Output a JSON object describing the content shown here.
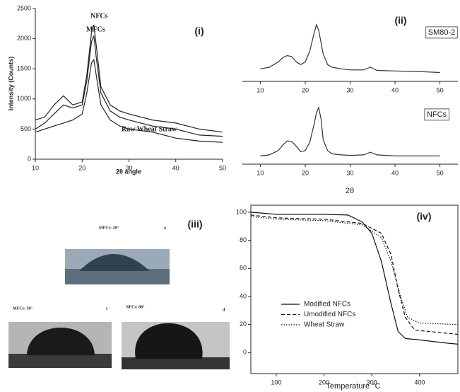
{
  "chart_data": [
    {
      "type": "line",
      "panel_label": "(i)",
      "ylabel": "Intensity (Counts)",
      "xlabel": "2θ angle",
      "xlim": [
        10,
        50
      ],
      "xticks": [
        10,
        20,
        30,
        40,
        50
      ],
      "ylim": [
        0,
        2500
      ],
      "yticks": [
        0,
        500,
        1000,
        1500,
        2000,
        2500
      ],
      "annotations": [
        "NFCs",
        "MFCs",
        "Raw Wheat Straw"
      ],
      "x": [
        10,
        12,
        14,
        16,
        18,
        20,
        21,
        22,
        22.5,
        23,
        24,
        26,
        28,
        30,
        35,
        40,
        45,
        50
      ],
      "series": [
        {
          "color": "#222222",
          "values": [
            650,
            700,
            900,
            1050,
            900,
            950,
            1400,
            2100,
            2230,
            1900,
            1200,
            900,
            800,
            750,
            650,
            600,
            500,
            450
          ]
        },
        {
          "color": "#222222",
          "values": [
            500,
            600,
            750,
            900,
            850,
            900,
            1300,
            1950,
            2050,
            1700,
            1100,
            800,
            700,
            650,
            550,
            500,
            400,
            380
          ]
        },
        {
          "color": "#222222",
          "values": [
            450,
            500,
            550,
            600,
            650,
            750,
            1100,
            1600,
            1650,
            1400,
            900,
            650,
            550,
            500,
            450,
            350,
            300,
            280
          ]
        }
      ]
    },
    {
      "type": "line",
      "panel_label": "(ii)",
      "label": "SM80-2",
      "xlim": [
        6,
        54
      ],
      "xticks": [
        10,
        20,
        30,
        40,
        50
      ],
      "ylim": [
        0,
        1
      ],
      "x": [
        10,
        12,
        14,
        15,
        16,
        17,
        18,
        19,
        20,
        21,
        22,
        22.5,
        23,
        24,
        25,
        26,
        28,
        30,
        33,
        34.5,
        36,
        40,
        45,
        50
      ],
      "values": [
        0.17,
        0.2,
        0.3,
        0.38,
        0.42,
        0.4,
        0.3,
        0.25,
        0.3,
        0.5,
        0.85,
        1.0,
        0.9,
        0.45,
        0.25,
        0.2,
        0.17,
        0.15,
        0.15,
        0.2,
        0.14,
        0.13,
        0.12,
        0.1
      ],
      "color": "#333333"
    },
    {
      "type": "line",
      "label": "NFCs",
      "xlabel": "2θ",
      "xlim": [
        6,
        54
      ],
      "xticks": [
        10,
        20,
        30,
        40,
        50
      ],
      "ylim": [
        0,
        1
      ],
      "x": [
        10,
        12,
        14,
        15,
        16,
        17,
        18,
        19,
        20,
        21,
        22,
        22.5,
        23,
        23.5,
        24,
        25,
        26,
        28,
        30,
        33,
        34.5,
        36,
        40,
        45,
        50
      ],
      "values": [
        0.1,
        0.12,
        0.2,
        0.3,
        0.38,
        0.37,
        0.28,
        0.18,
        0.2,
        0.35,
        0.7,
        0.9,
        1.0,
        0.8,
        0.4,
        0.2,
        0.14,
        0.12,
        0.11,
        0.12,
        0.17,
        0.12,
        0.1,
        0.1,
        0.1
      ],
      "color": "#333333"
    },
    {
      "type": "line",
      "panel_label": "(iv)",
      "xlabel": "Temperature °C",
      "xlim": [
        47,
        480
      ],
      "xticks": [
        100,
        200,
        300,
        400
      ],
      "ylim": [
        -15,
        105
      ],
      "yticks": [
        0,
        20,
        40,
        60,
        80,
        100
      ],
      "series": [
        {
          "name": "Modified NFCs",
          "color": "#111111",
          "style": "solid",
          "x": [
            47,
            100,
            200,
            250,
            280,
            300,
            320,
            340,
            355,
            370,
            400,
            450,
            480
          ],
          "values": [
            100,
            98.5,
            98.5,
            98,
            93,
            85,
            65,
            35,
            15,
            10,
            9,
            7,
            6
          ]
        },
        {
          "name": "Umodified NFCs",
          "color": "#111111",
          "style": "dashed",
          "x": [
            47,
            100,
            200,
            280,
            320,
            340,
            355,
            370,
            390,
            480
          ],
          "values": [
            98,
            96,
            95,
            92,
            85,
            70,
            45,
            25,
            16,
            13
          ]
        },
        {
          "name": "Wheat Straw",
          "color": "#111111",
          "style": "dotted",
          "x": [
            47,
            100,
            200,
            280,
            320,
            340,
            360,
            375,
            400,
            480
          ],
          "values": [
            97,
            95,
            94,
            91,
            82,
            65,
            40,
            25,
            21,
            20
          ]
        }
      ]
    }
  ],
  "image_panel": {
    "label": "(iii)",
    "captions": [
      "MFCs: 26°",
      "a",
      "MFCs: 58°",
      "c",
      "NFCs: 88°",
      "d"
    ]
  }
}
